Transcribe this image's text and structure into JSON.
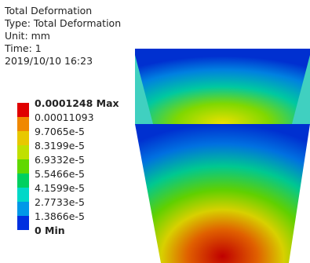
{
  "header": {
    "title": "Total Deformation",
    "type": "Type: Total Deformation",
    "unit": "Unit: mm",
    "time": "Time: 1",
    "date": "2019/10/10 16:23"
  },
  "legend": {
    "labels": [
      "0.0001248 Max",
      "0.00011093",
      "9.7065e-5",
      "8.3199e-5",
      "6.9332e-5",
      "5.5466e-5",
      "4.1599e-5",
      "2.7733e-5",
      "1.3866e-5",
      "0 Min"
    ],
    "colors": [
      "#e00000",
      "#f08800",
      "#e8c800",
      "#c0e000",
      "#60d800",
      "#00d060",
      "#00d8c8",
      "#0098e8",
      "#0030e0"
    ]
  }
}
